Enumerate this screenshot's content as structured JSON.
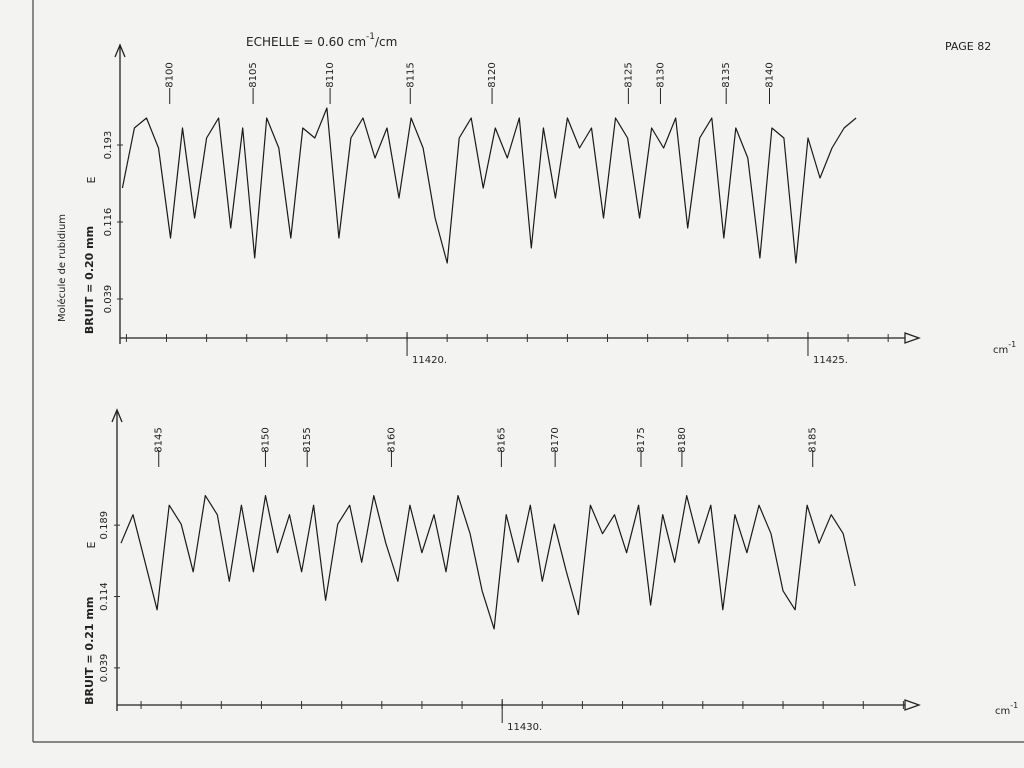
{
  "title": [
    "ECHELLE = 0.60 cm",
    "-1",
    "/cm"
  ],
  "page": "PAGE 82",
  "chart_data": [
    {
      "type": "line",
      "color": "#1a1a1a",
      "ylabel": "Molécule de rubidium",
      "noise": "BRUIT = 0.20 mm",
      "marker": "E",
      "xunit": [
        "cm",
        "-1"
      ],
      "xlim": [
        11416.42,
        11426.21
      ],
      "ylim": [
        0,
        0.293
      ],
      "xticks": [
        {
          "value": 11420,
          "label": "11420."
        },
        {
          "value": 11425,
          "label": "11425."
        }
      ],
      "xminor": [
        11416.5,
        11417,
        11417.5,
        11418,
        11418.5,
        11419,
        11419.5,
        11420,
        11420.5,
        11421,
        11421.5,
        11422,
        11422.5,
        11423,
        11423.5,
        11424,
        11424.5,
        11425,
        11425.5,
        11426
      ],
      "yticks": [
        0.039,
        0.116,
        0.193
      ],
      "line_labels": [
        {
          "label": "8100",
          "x": 11417.04
        },
        {
          "label": "8105",
          "x": 11418.08
        },
        {
          "label": "8110",
          "x": 11419.04
        },
        {
          "label": "8115",
          "x": 11420.04
        },
        {
          "label": "8120",
          "x": 11421.06
        },
        {
          "label": "8125",
          "x": 11422.76
        },
        {
          "label": "8130",
          "x": 11423.16
        },
        {
          "label": "8135",
          "x": 11423.98
        },
        {
          "label": "8140",
          "x": 11424.52
        }
      ],
      "x": [
        11416.45,
        11416.6,
        11416.75,
        11416.9,
        11417.05,
        11417.2,
        11417.35,
        11417.5,
        11417.65,
        11417.8,
        11417.95,
        11418.1,
        11418.25,
        11418.4,
        11418.55,
        11418.7,
        11418.85,
        11419.0,
        11419.15,
        11419.3,
        11419.45,
        11419.6,
        11419.75,
        11419.9,
        11420.05,
        11420.2,
        11420.35,
        11420.5,
        11420.65,
        11420.8,
        11420.95,
        11421.1,
        11421.25,
        11421.4,
        11421.55,
        11421.7,
        11421.85,
        11422.0,
        11422.15,
        11422.3,
        11422.45,
        11422.6,
        11422.75,
        11422.9,
        11423.05,
        11423.2,
        11423.35,
        11423.5,
        11423.65,
        11423.8,
        11423.95,
        11424.1,
        11424.25,
        11424.4,
        11424.55,
        11424.7,
        11424.85,
        11425.0,
        11425.15,
        11425.3,
        11425.45,
        11425.6
      ],
      "values": [
        0.15,
        0.21,
        0.22,
        0.19,
        0.1,
        0.21,
        0.12,
        0.2,
        0.22,
        0.11,
        0.21,
        0.08,
        0.22,
        0.19,
        0.1,
        0.21,
        0.2,
        0.23,
        0.1,
        0.2,
        0.22,
        0.18,
        0.21,
        0.14,
        0.22,
        0.19,
        0.12,
        0.075,
        0.2,
        0.22,
        0.15,
        0.21,
        0.18,
        0.22,
        0.09,
        0.21,
        0.14,
        0.22,
        0.19,
        0.21,
        0.12,
        0.22,
        0.2,
        0.12,
        0.21,
        0.19,
        0.22,
        0.11,
        0.2,
        0.22,
        0.1,
        0.21,
        0.18,
        0.08,
        0.21,
        0.2,
        0.075,
        0.2,
        0.16,
        0.19,
        0.21,
        0.22
      ]
    },
    {
      "type": "line",
      "color": "#1a1a1a",
      "noise": "BRUIT = 0.21 mm",
      "marker": "E",
      "xunit": [
        "cm",
        "-1"
      ],
      "xlim": [
        11425.2,
        11435.02
      ],
      "ylim": [
        0,
        0.31
      ],
      "xticks": [
        {
          "value": 11430,
          "label": "11430."
        }
      ],
      "xminor": [
        11425.5,
        11426,
        11426.5,
        11427,
        11427.5,
        11428,
        11428.5,
        11429,
        11429.5,
        11430,
        11430.5,
        11431,
        11431.5,
        11432,
        11432.5,
        11433,
        11433.5,
        11434,
        11434.5,
        11435
      ],
      "yticks": [
        0.039,
        0.114,
        0.189
      ],
      "line_labels": [
        {
          "label": "8145",
          "x": 11425.72
        },
        {
          "label": "8150",
          "x": 11427.05
        },
        {
          "label": "8155",
          "x": 11427.57
        },
        {
          "label": "8160",
          "x": 11428.62
        },
        {
          "label": "8165",
          "x": 11429.99
        },
        {
          "label": "8170",
          "x": 11430.66
        },
        {
          "label": "8175",
          "x": 11431.73
        },
        {
          "label": "8180",
          "x": 11432.24
        },
        {
          "label": "8185",
          "x": 11433.87
        }
      ],
      "x": [
        11425.25,
        11425.4,
        11425.55,
        11425.7,
        11425.85,
        11426.0,
        11426.15,
        11426.3,
        11426.45,
        11426.6,
        11426.75,
        11426.9,
        11427.05,
        11427.2,
        11427.35,
        11427.5,
        11427.65,
        11427.8,
        11427.95,
        11428.1,
        11428.25,
        11428.4,
        11428.55,
        11428.7,
        11428.85,
        11429.0,
        11429.15,
        11429.3,
        11429.45,
        11429.6,
        11429.75,
        11429.9,
        11430.05,
        11430.2,
        11430.35,
        11430.5,
        11430.65,
        11430.8,
        11430.95,
        11431.1,
        11431.25,
        11431.4,
        11431.55,
        11431.7,
        11431.85,
        11432.0,
        11432.15,
        11432.3,
        11432.45,
        11432.6,
        11432.75,
        11432.9,
        11433.05,
        11433.2,
        11433.35,
        11433.5,
        11433.65,
        11433.8,
        11433.95,
        11434.1,
        11434.25,
        11434.4
      ],
      "values": [
        0.17,
        0.2,
        0.15,
        0.1,
        0.21,
        0.19,
        0.14,
        0.22,
        0.2,
        0.13,
        0.21,
        0.14,
        0.22,
        0.16,
        0.2,
        0.14,
        0.21,
        0.11,
        0.19,
        0.21,
        0.15,
        0.22,
        0.17,
        0.13,
        0.21,
        0.16,
        0.2,
        0.14,
        0.22,
        0.18,
        0.12,
        0.08,
        0.2,
        0.15,
        0.21,
        0.13,
        0.19,
        0.14,
        0.095,
        0.21,
        0.18,
        0.2,
        0.16,
        0.21,
        0.105,
        0.2,
        0.15,
        0.22,
        0.17,
        0.21,
        0.1,
        0.2,
        0.16,
        0.21,
        0.18,
        0.12,
        0.1,
        0.21,
        0.17,
        0.2,
        0.18,
        0.125
      ]
    }
  ]
}
